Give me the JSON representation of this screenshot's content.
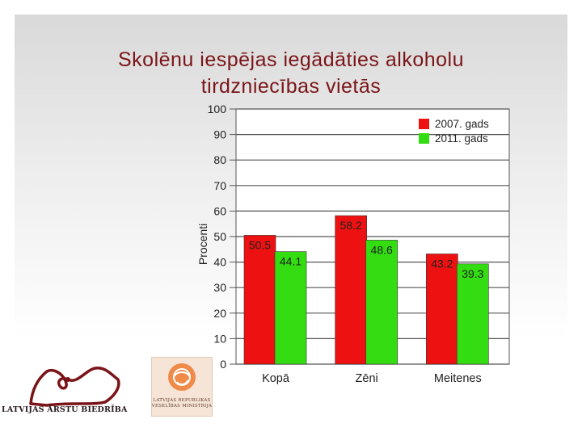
{
  "slide": {
    "title_line1": "Skolēnu iespējas iegādāties alkoholu",
    "title_line2": "tirdzniecības vietās",
    "title_color": "#7a1418"
  },
  "logos": {
    "lab_text": "LATVIJAS ĀRSTU BIEDRĪBA",
    "vm_line1": "LATVIJAS REPUBLIKAS",
    "vm_line2": "VESELĪBAS MINISTRIJA",
    "lab_icon": "latvia-map-outline-icon",
    "vm_icon": "circular-swirl-emblem-icon"
  },
  "chart_data": {
    "type": "bar",
    "categories": [
      "Kopā",
      "Zēni",
      "Meitenes"
    ],
    "series": [
      {
        "name": "2007. gads",
        "values": [
          50.5,
          58.2,
          43.2
        ],
        "color": "#ee1111"
      },
      {
        "name": "2011. gads",
        "values": [
          44.1,
          48.6,
          39.3
        ],
        "color": "#33dd11"
      }
    ],
    "ylabel": "Procenti",
    "ylim": [
      0,
      100
    ],
    "yticks": [
      0,
      10,
      20,
      30,
      40,
      50,
      60,
      70,
      80,
      90,
      100
    ],
    "grid": true,
    "legend": "top-right"
  }
}
